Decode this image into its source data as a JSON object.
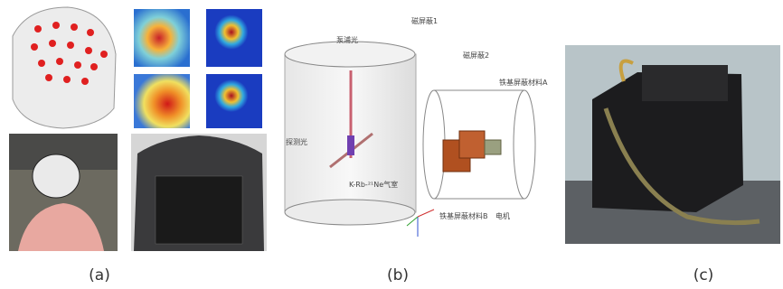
{
  "panels": [
    {
      "label": "(a)"
    },
    {
      "label": "(b)",
      "annotations": [
        "磁屏蔽1",
        "泵浦光",
        "磁屏蔽2",
        "铁基屏蔽材料A",
        "探测光",
        "K-Rb-²¹Ne气室",
        "铁基屏蔽材料B",
        "电机"
      ]
    },
    {
      "label": "(c)"
    }
  ]
}
